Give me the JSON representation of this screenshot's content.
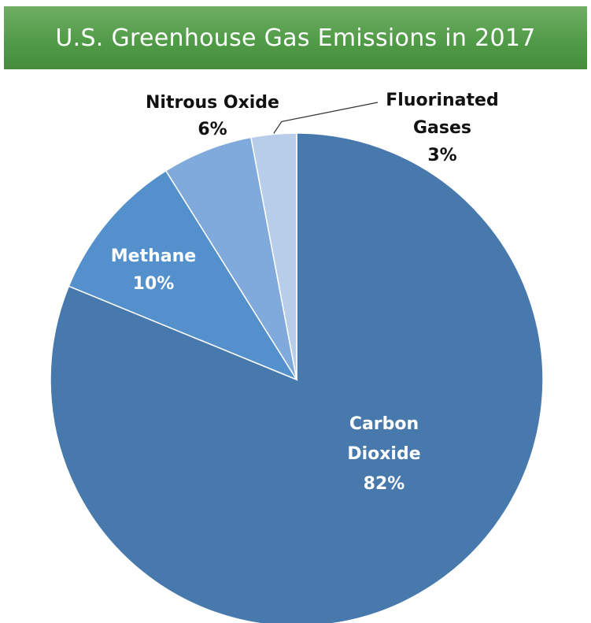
{
  "chart_data": {
    "type": "pie",
    "title": "U.S. Greenhouse Gas Emissions in 2017",
    "slices": [
      {
        "name": "Carbon Dioxide",
        "label_lines": [
          "Carbon",
          "Dioxide"
        ],
        "value": 82,
        "value_label": "82%",
        "color": "#4779ad",
        "label_color": "#ffffff"
      },
      {
        "name": "Methane",
        "label_lines": [
          "Methane"
        ],
        "value": 10,
        "value_label": "10%",
        "color": "#5491cc",
        "label_color": "#ffffff"
      },
      {
        "name": "Nitrous Oxide",
        "label_lines": [
          "Nitrous Oxide"
        ],
        "value": 6,
        "value_label": "6%",
        "color": "#80a9dc",
        "label_color": "#111111"
      },
      {
        "name": "Fluorinated Gases",
        "label_lines": [
          "Fluorinated",
          "Gases"
        ],
        "value": 3,
        "value_label": "3%",
        "color": "#b8cdea",
        "label_color": "#111111"
      }
    ]
  },
  "colors": {
    "title_bar": "#4f9a46",
    "title_text": "#ffffff",
    "slice_border": "#ffffff",
    "leader_line": "#333333"
  }
}
